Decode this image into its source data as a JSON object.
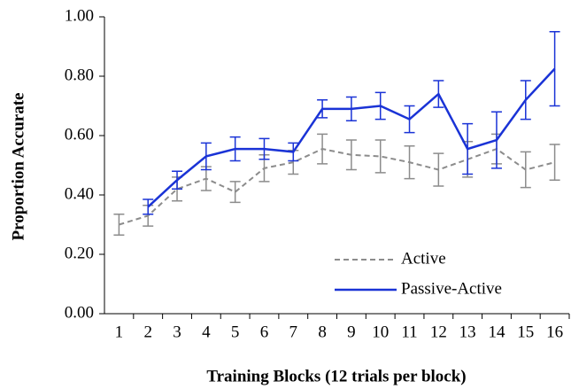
{
  "chart_data": {
    "type": "line",
    "y_label": "Proportion Accurate",
    "x_label": "Training Blocks (12 trials per block)",
    "categories": [
      "1",
      "2",
      "3",
      "4",
      "5",
      "6",
      "7",
      "8",
      "9",
      "10",
      "11",
      "12",
      "13",
      "14",
      "15",
      "16"
    ],
    "series": [
      {
        "name": "Active",
        "color": "#8c8c8c",
        "dash": true,
        "values": [
          0.3,
          0.33,
          0.42,
          0.455,
          0.41,
          0.49,
          0.51,
          0.555,
          0.535,
          0.53,
          0.51,
          0.485,
          0.52,
          0.555,
          0.485,
          0.51
        ],
        "errors": [
          0.035,
          0.035,
          0.04,
          0.04,
          0.035,
          0.045,
          0.04,
          0.05,
          0.05,
          0.055,
          0.055,
          0.055,
          0.06,
          0.05,
          0.06,
          0.06
        ]
      },
      {
        "name": "Passive-Active",
        "color": "#1a33d6",
        "dash": false,
        "values": [
          null,
          0.36,
          0.45,
          0.53,
          0.555,
          0.555,
          0.545,
          0.69,
          0.69,
          0.7,
          0.655,
          0.74,
          0.555,
          0.585,
          0.72,
          0.825
        ],
        "errors": [
          null,
          0.025,
          0.03,
          0.045,
          0.04,
          0.035,
          0.03,
          0.03,
          0.04,
          0.045,
          0.045,
          0.045,
          0.085,
          0.095,
          0.065,
          0.125
        ]
      }
    ],
    "ylim": [
      0,
      1
    ],
    "yticks": [
      {
        "value": 0,
        "label": "0.00"
      },
      {
        "value": 0.2,
        "label": "0.20"
      },
      {
        "value": 0.4,
        "label": "0.40"
      },
      {
        "value": 0.6,
        "label": "0.60"
      },
      {
        "value": 0.8,
        "label": "0.80"
      },
      {
        "value": 1,
        "label": "1.00"
      }
    ],
    "grid": false,
    "legend": "lower right"
  }
}
